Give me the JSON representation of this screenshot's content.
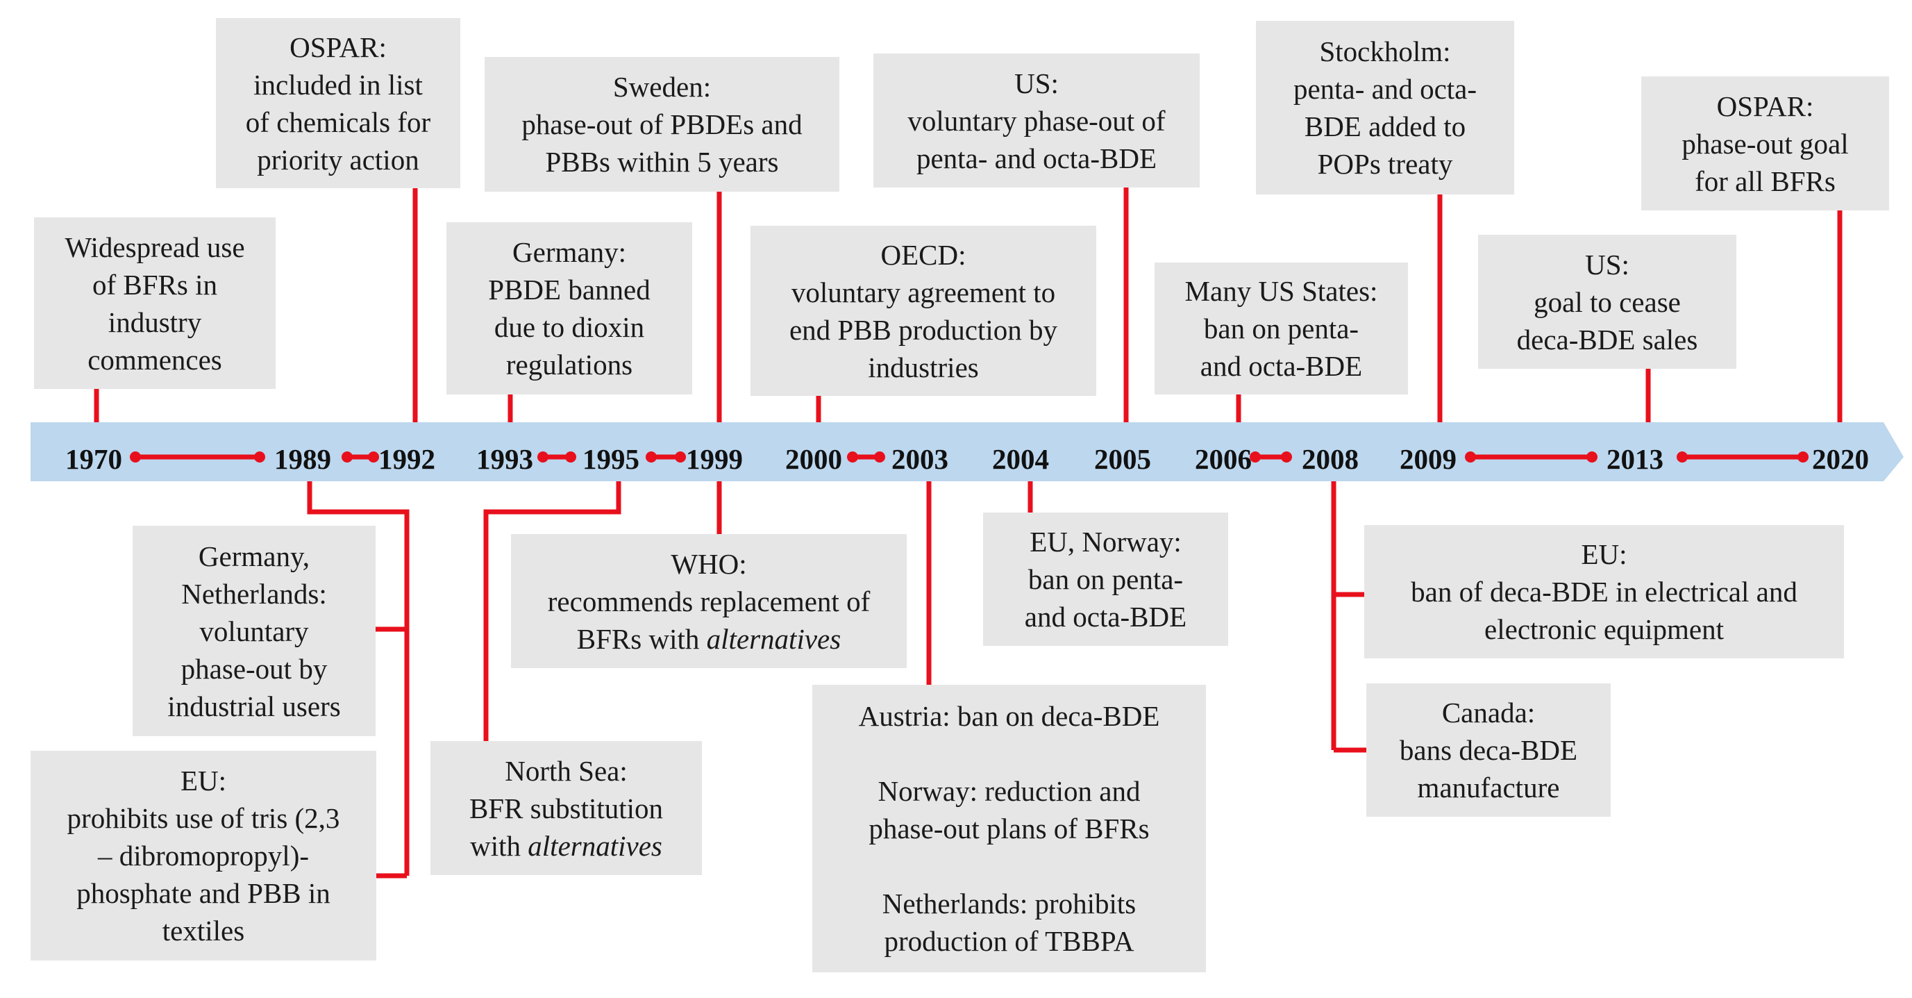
{
  "colors": {
    "timeline_bar": "#bcd7ee",
    "connector": "#e8101c",
    "box_fill": "#e6e6e6",
    "text": "#1a1a1a"
  },
  "years": [
    "1970",
    "1989",
    "1992",
    "1993",
    "1995",
    "1999",
    "2000",
    "2003",
    "2004",
    "2005",
    "2006",
    "2008",
    "2009",
    "2013",
    "2020"
  ],
  "events_above": [
    {
      "lines": [
        "Widespread use",
        "of BFRs in",
        "industry",
        "commences"
      ]
    },
    {
      "lines": [
        "OSPAR:",
        "included in list",
        "of chemicals for",
        "priority action"
      ]
    },
    {
      "lines": [
        "Germany:",
        "PBDE banned",
        "due to dioxin",
        "regulations"
      ]
    },
    {
      "lines": [
        "Sweden:",
        "phase-out of PBDEs and",
        "PBBs within 5 years"
      ]
    },
    {
      "lines": [
        "OECD:",
        "voluntary agreement to",
        "end PBB production by",
        "industries"
      ]
    },
    {
      "lines": [
        "US:",
        "voluntary phase-out of",
        "penta- and octa-BDE"
      ]
    },
    {
      "lines": [
        "Many US States:",
        "ban on penta-",
        "and octa-BDE"
      ]
    },
    {
      "lines": [
        "Stockholm:",
        "penta- and octa-",
        "BDE added to",
        "POPs treaty"
      ]
    },
    {
      "lines": [
        "US:",
        "goal to cease",
        "deca-BDE sales"
      ]
    },
    {
      "lines": [
        "OSPAR:",
        "phase-out goal",
        "for all BFRs"
      ]
    }
  ],
  "events_below": [
    {
      "lines": [
        "Germany,",
        "Netherlands:",
        "voluntary",
        "phase-out by",
        "industrial users"
      ]
    },
    {
      "lines": [
        "EU:",
        "prohibits use of tris (2,3",
        "– dibromopropyl)-",
        "phosphate and PBB in",
        "textiles"
      ]
    },
    {
      "lines": [
        "North Sea:",
        "BFR substitution"
      ],
      "plain": "with ",
      "italic": "alternatives"
    },
    {
      "lines": [
        "WHO:",
        "recommends replacement of"
      ],
      "plain": "BFRs with ",
      "italic": "alternatives"
    },
    {
      "lines": [
        "Austria: ban on deca-BDE",
        "",
        "Norway: reduction and",
        "phase-out plans of BFRs",
        "",
        "Netherlands: prohibits",
        "production of TBBPA"
      ]
    },
    {
      "lines": [
        "EU, Norway:",
        "ban on penta-",
        "and octa-BDE"
      ]
    },
    {
      "lines": [
        "EU:",
        "ban of deca-BDE in electrical and",
        "electronic equipment"
      ]
    },
    {
      "lines": [
        "Canada:",
        "bans deca-BDE",
        "manufacture"
      ]
    }
  ]
}
